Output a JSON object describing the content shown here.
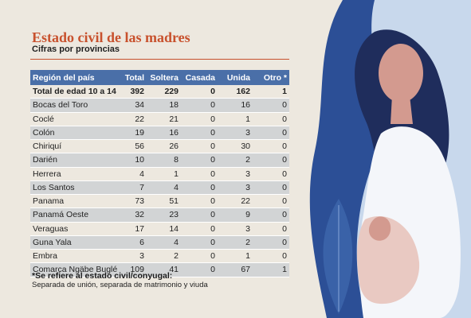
{
  "title": "Estado civil de las madres",
  "subtitle": "Cifras por provincias",
  "colors": {
    "title": "#c8512d",
    "header_bg": "#4a6fa8",
    "stripe": "#cdd0d4",
    "illustration_blue": "#2c4f96",
    "illustration_dark": "#1f2d5c"
  },
  "chart_data": {
    "type": "table",
    "columns": [
      "Región del país",
      "Total",
      "Soltera",
      "Casada",
      "Unida",
      "Otro *"
    ],
    "rows": [
      [
        "Total de edad 10 a 14",
        "392",
        "229",
        "0",
        "162",
        "1"
      ],
      [
        "Bocas del Toro",
        "34",
        "18",
        "0",
        "16",
        "0"
      ],
      [
        "Coclé",
        "22",
        "21",
        "0",
        "1",
        "0"
      ],
      [
        "Colón",
        "19",
        "16",
        "0",
        "3",
        "0"
      ],
      [
        "Chiriquí",
        "56",
        "26",
        "0",
        "30",
        "0"
      ],
      [
        "Darién",
        "10",
        "8",
        "0",
        "2",
        "0"
      ],
      [
        "Herrera",
        "4",
        "1",
        "0",
        "3",
        "0"
      ],
      [
        "Los Santos",
        "7",
        "4",
        "0",
        "3",
        "0"
      ],
      [
        "Panama",
        "73",
        "51",
        "0",
        "22",
        "0"
      ],
      [
        "Panamá Oeste",
        "32",
        "23",
        "0",
        "9",
        "0"
      ],
      [
        "Veraguas",
        "17",
        "14",
        "0",
        "3",
        "0"
      ],
      [
        "Guna Yala",
        "6",
        "4",
        "0",
        "2",
        "0"
      ],
      [
        "Embra",
        "3",
        "2",
        "0",
        "1",
        "0"
      ],
      [
        "Comarca Ngäbe Buglé",
        "109",
        "41",
        "0",
        "67",
        "1"
      ]
    ]
  },
  "footnote": {
    "title": "*Se refiere al estado civil/conyugal:",
    "text": "Separada de unión, separada de matrimonio y viuda"
  }
}
